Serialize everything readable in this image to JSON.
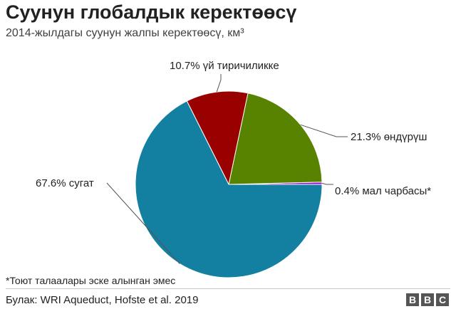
{
  "title": "Суунун глобалдык керектөөсү",
  "subtitle": "2014-жылдагы суунун жалпы керектөөсү, км³",
  "footnote": "*Тоют талаалары эске алынган эмес",
  "source": "Булак: WRI Aqueduct, Hofste et al. 2019",
  "brand": {
    "letters": [
      "B",
      "B",
      "C"
    ]
  },
  "chart_data": {
    "type": "pie",
    "title": "Суунун глобалдык керектөөсү",
    "subtitle": "2014-жылдагы суунун жалпы керектөөсү, км³",
    "slices": [
      {
        "label": "0.4% мал чарбасы*",
        "value": 0.4,
        "color": "#a000d8"
      },
      {
        "label": "21.3% өндүрүш",
        "value": 21.3,
        "color": "#588300"
      },
      {
        "label": "10.7% үй тиричиликке",
        "value": 10.7,
        "color": "#990000"
      },
      {
        "label": "67.6% сугат",
        "value": 67.6,
        "color": "#1380a1"
      }
    ]
  }
}
